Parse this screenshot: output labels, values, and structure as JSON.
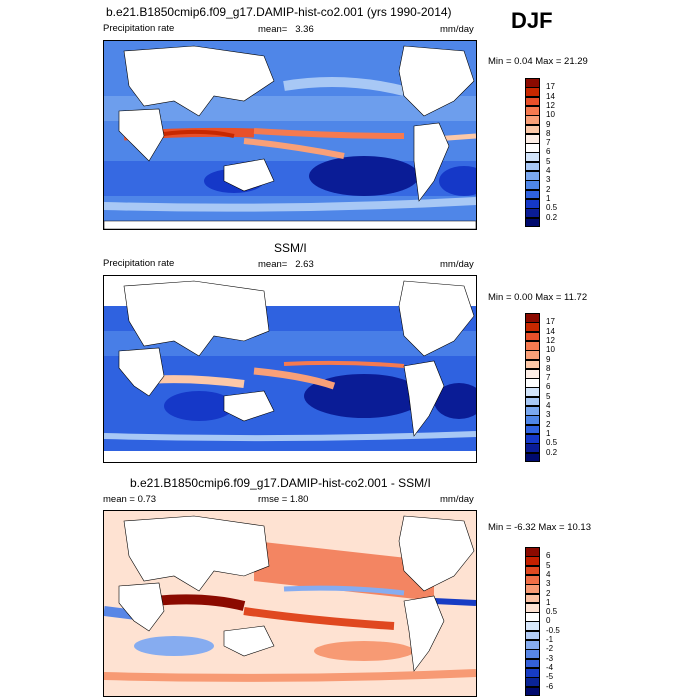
{
  "season": "DJF",
  "panels": [
    {
      "title": "b.e21.B1850cmip6.f09_g17.DAMIP-hist-co2.001 (yrs 1990-2014)",
      "left_label": "Precipitation rate",
      "mean_label": "mean=",
      "mean_value": "3.36",
      "units": "mm/day",
      "minmax": "Min =  0.04 Max =  21.29",
      "colorbar_levels": [
        "17",
        "14",
        "12",
        "10",
        "9",
        "8",
        "7",
        "6",
        "5",
        "4",
        "3",
        "2",
        "1",
        "0.5",
        "0.2"
      ]
    },
    {
      "title": "SSM/I",
      "left_label": "Precipitation rate",
      "mean_label": "mean=",
      "mean_value": "2.63",
      "units": "mm/day",
      "minmax": "Min =  0.00 Max =  11.72",
      "colorbar_levels": [
        "17",
        "14",
        "12",
        "10",
        "9",
        "8",
        "7",
        "6",
        "5",
        "4",
        "3",
        "2",
        "1",
        "0.5",
        "0.2"
      ]
    },
    {
      "title": "b.e21.B1850cmip6.f09_g17.DAMIP-hist-co2.001 - SSM/I",
      "left_label": "mean =   0.73",
      "rmse_label": "rmse =   1.80",
      "units": "mm/day",
      "minmax": "Min =  -6.32 Max =  10.13",
      "colorbar_levels": [
        "6",
        "5",
        "4",
        "3",
        "2",
        "1",
        "0.5",
        "0",
        "-0.5",
        "-1",
        "-2",
        "-3",
        "-4",
        "-5",
        "-6"
      ]
    }
  ],
  "colors": {
    "abs_scale": [
      "#8b0a00",
      "#c82800",
      "#e8502a",
      "#f57a50",
      "#f9a078",
      "#fcc8a8",
      "#fdeee6",
      "#ffffff",
      "#d2e4fa",
      "#a8c8f5",
      "#7aa8f0",
      "#4f86e8",
      "#2f62e0",
      "#1538c8",
      "#0a1c96",
      "#000a6e"
    ],
    "diff_scale": [
      "#8b0a00",
      "#c32000",
      "#e04820",
      "#f06e46",
      "#f79a74",
      "#fcc2a4",
      "#fee2d2",
      "#ffffff",
      "#d8e8fb",
      "#b2ccf5",
      "#86acf0",
      "#5886e6",
      "#3460da",
      "#173cc4",
      "#0a2496",
      "#000a6e"
    ]
  },
  "chart_data": [
    {
      "type": "heatmap",
      "title": "b.e21.B1850cmip6.f09_g17.DAMIP-hist-co2.001 (yrs 1990-2014)",
      "variable": "Precipitation rate",
      "units": "mm/day",
      "mean": 3.36,
      "min": 0.04,
      "max": 21.29,
      "contour_levels": [
        0.2,
        0.5,
        1,
        2,
        3,
        4,
        5,
        6,
        7,
        8,
        9,
        10,
        12,
        14,
        17
      ]
    },
    {
      "type": "heatmap",
      "title": "SSM/I",
      "variable": "Precipitation rate",
      "units": "mm/day",
      "mean": 2.63,
      "min": 0.0,
      "max": 11.72,
      "contour_levels": [
        0.2,
        0.5,
        1,
        2,
        3,
        4,
        5,
        6,
        7,
        8,
        9,
        10,
        12,
        14,
        17
      ]
    },
    {
      "type": "heatmap",
      "title": "b.e21.B1850cmip6.f09_g17.DAMIP-hist-co2.001 - SSM/I",
      "units": "mm/day",
      "mean": 0.73,
      "rmse": 1.8,
      "min": -6.32,
      "max": 10.13,
      "contour_levels": [
        -6,
        -5,
        -4,
        -3,
        -2,
        -1,
        -0.5,
        0,
        0.5,
        1,
        2,
        3,
        4,
        5,
        6
      ]
    }
  ]
}
